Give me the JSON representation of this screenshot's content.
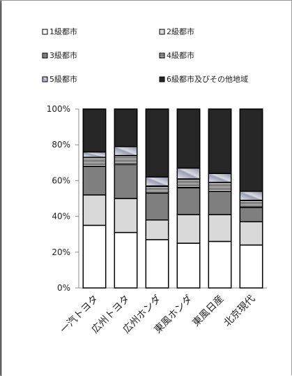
{
  "chart_data": {
    "type": "bar",
    "stacked": true,
    "normalized": true,
    "title": "",
    "xlabel": "",
    "ylabel": "",
    "ylim": [
      0,
      100
    ],
    "yticks": [
      "0%",
      "20%",
      "40%",
      "60%",
      "80%",
      "100%"
    ],
    "categories": [
      "一汽トヨタ",
      "広州トヨタ",
      "広州ホンダ",
      "東風ホンダ",
      "東風日産",
      "北京現代"
    ],
    "legend_position": "top",
    "grid": false,
    "series": [
      {
        "name": "1級都市",
        "color": "#ffffff",
        "values": [
          35,
          31,
          27,
          25,
          26,
          24
        ]
      },
      {
        "name": "2級都市",
        "color": "#d9d9d9",
        "values": [
          17,
          19,
          11,
          16,
          15,
          13
        ]
      },
      {
        "name": "3級都市",
        "color": "#7f7f7f",
        "values": [
          16,
          19,
          15,
          15,
          13,
          8
        ]
      },
      {
        "name": "4級都市",
        "color": "#ebebeb",
        "values": [
          5,
          5,
          4,
          5,
          5,
          4
        ],
        "pattern": "stripes"
      },
      {
        "name": "5級都市",
        "color": "#b8bbc8",
        "values": [
          3,
          5,
          5,
          6,
          5,
          5
        ],
        "pattern": "gradient"
      },
      {
        "name": "6級都市及びその他地域",
        "color": "#262626",
        "values": [
          24,
          21,
          38,
          33,
          36,
          46
        ]
      }
    ]
  }
}
